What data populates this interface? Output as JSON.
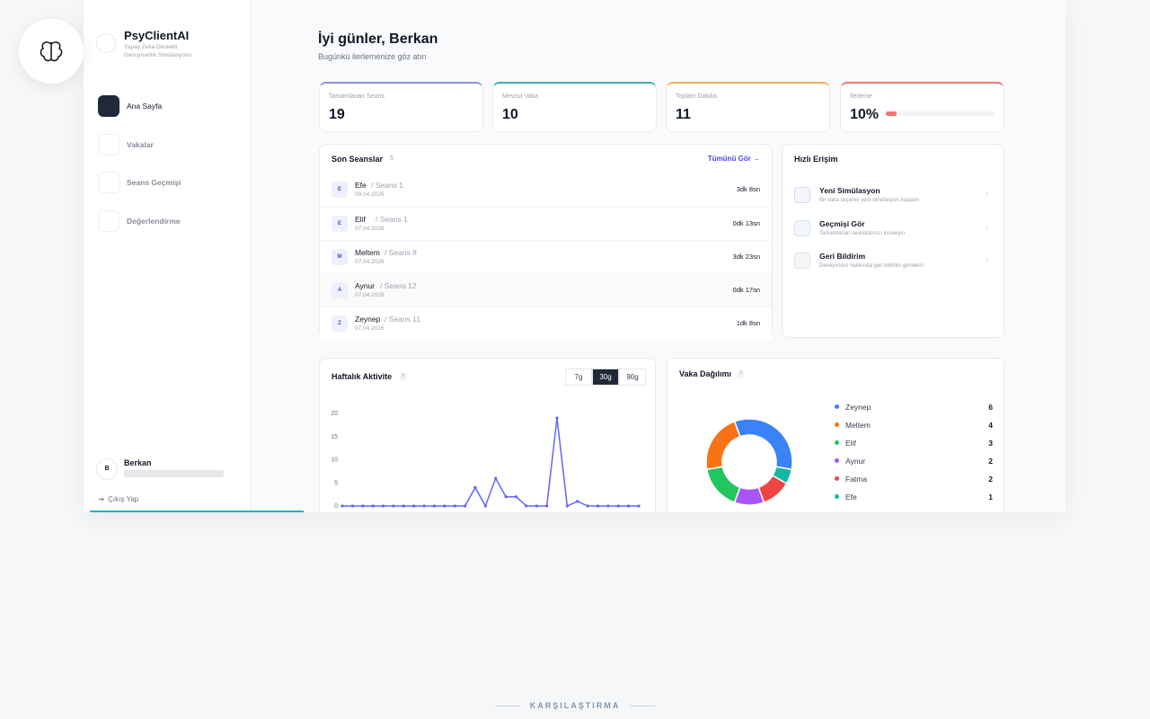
{
  "sidebar": {
    "brand": "PsyClientAI",
    "tagline": "Yapay Zeka Destekli Danışmanlık Simülasyonu",
    "nav": [
      "Ana Sayfa",
      "Vakalar",
      "Seans Geçmişi",
      "Değerlendirme"
    ],
    "user": {
      "initial": "B",
      "name": "Berkan"
    },
    "logout": "Çıkış Yap"
  },
  "header": {
    "title": "İyi günler, Berkan",
    "subtitle": "Bugünkü ilerlemenize göz atın"
  },
  "stats": [
    {
      "label": "Tamamlanan Seans",
      "value": 19,
      "color": "#8b8fe0"
    },
    {
      "label": "Mevcut Vaka",
      "value": 10,
      "color": "#38b2ac"
    },
    {
      "label": "Toplam Dakika",
      "value": 11,
      "color": "#f6ad55"
    },
    {
      "label": "İlerleme",
      "value": 10,
      "value_label": "10%",
      "color": "#f87171"
    }
  ],
  "recent": {
    "title": "Son Seanslar",
    "count": 5,
    "link": "Tümünü Gör →",
    "rows": [
      {
        "initial": "E",
        "name": "Efe",
        "session": "/ Seans 1",
        "date": "09.04.2026",
        "duration": "3dk 8sn"
      },
      {
        "initial": "E",
        "name": "Elif",
        "session": "/ Seans 1",
        "date": "07.04.2026",
        "duration": "0dk 13sn"
      },
      {
        "initial": "M",
        "name": "Meltem",
        "session": "/ Seans 8",
        "date": "07.04.2026",
        "duration": "3dk 23sn"
      },
      {
        "initial": "A",
        "name": "Aynur",
        "session": "/ Seans 12",
        "date": "07.04.2026",
        "duration": "0dk 17sn"
      },
      {
        "initial": "Z",
        "name": "Zeynep",
        "session": "/ Seans 11",
        "date": "07.04.2026",
        "duration": "1dk 8sn"
      }
    ]
  },
  "quick": {
    "title": "Hızlı Erişim",
    "items": [
      {
        "title": "Yeni Simülasyon",
        "desc": "Bir vaka seçerek yeni simülasyon başlatın"
      },
      {
        "title": "Geçmişi Gör",
        "desc": "Tamamlanan seanslarınızı inceleyin"
      },
      {
        "title": "Geri Bildirim",
        "desc": "Deneyiminiz hakkında geri bildirim gönderin"
      }
    ]
  },
  "footer_label": "KARŞILAŞTIRMA",
  "chart_data": [
    {
      "type": "line",
      "title": "Haftalık Aktivite",
      "help": "?",
      "ranges": [
        "7g",
        "30g",
        "90g"
      ],
      "active_range": 1,
      "color": "#6366f1",
      "categories": [
        null,
        null,
        null,
        null,
        null,
        null,
        null,
        null,
        null,
        null,
        null,
        null,
        null,
        null,
        null,
        null,
        null,
        null,
        null,
        null,
        null,
        null,
        null,
        null,
        null,
        null,
        null,
        null,
        null,
        null
      ],
      "values": [
        0,
        0,
        0,
        0,
        0,
        0,
        0,
        0,
        0,
        0,
        0,
        0,
        0,
        4,
        0,
        6,
        2,
        2,
        0,
        0,
        0,
        19,
        0,
        1,
        0,
        0,
        0,
        0,
        0,
        0
      ],
      "ylim": [
        0,
        20
      ],
      "yticks": [
        0,
        5,
        10,
        15,
        20
      ]
    },
    {
      "type": "pie",
      "donut": true,
      "title": "Vaka Dağılımı",
      "help": "?",
      "categories": [
        "Zeynep",
        "Meltem",
        "Elif",
        "Aynur",
        "Fatma",
        "Efe"
      ],
      "values": [
        6,
        4,
        3,
        2,
        2,
        1
      ],
      "colors": [
        "#3b82f6",
        "#f97316",
        "#22c55e",
        "#a855f7",
        "#ef4444",
        "#14b8a6"
      ]
    }
  ]
}
